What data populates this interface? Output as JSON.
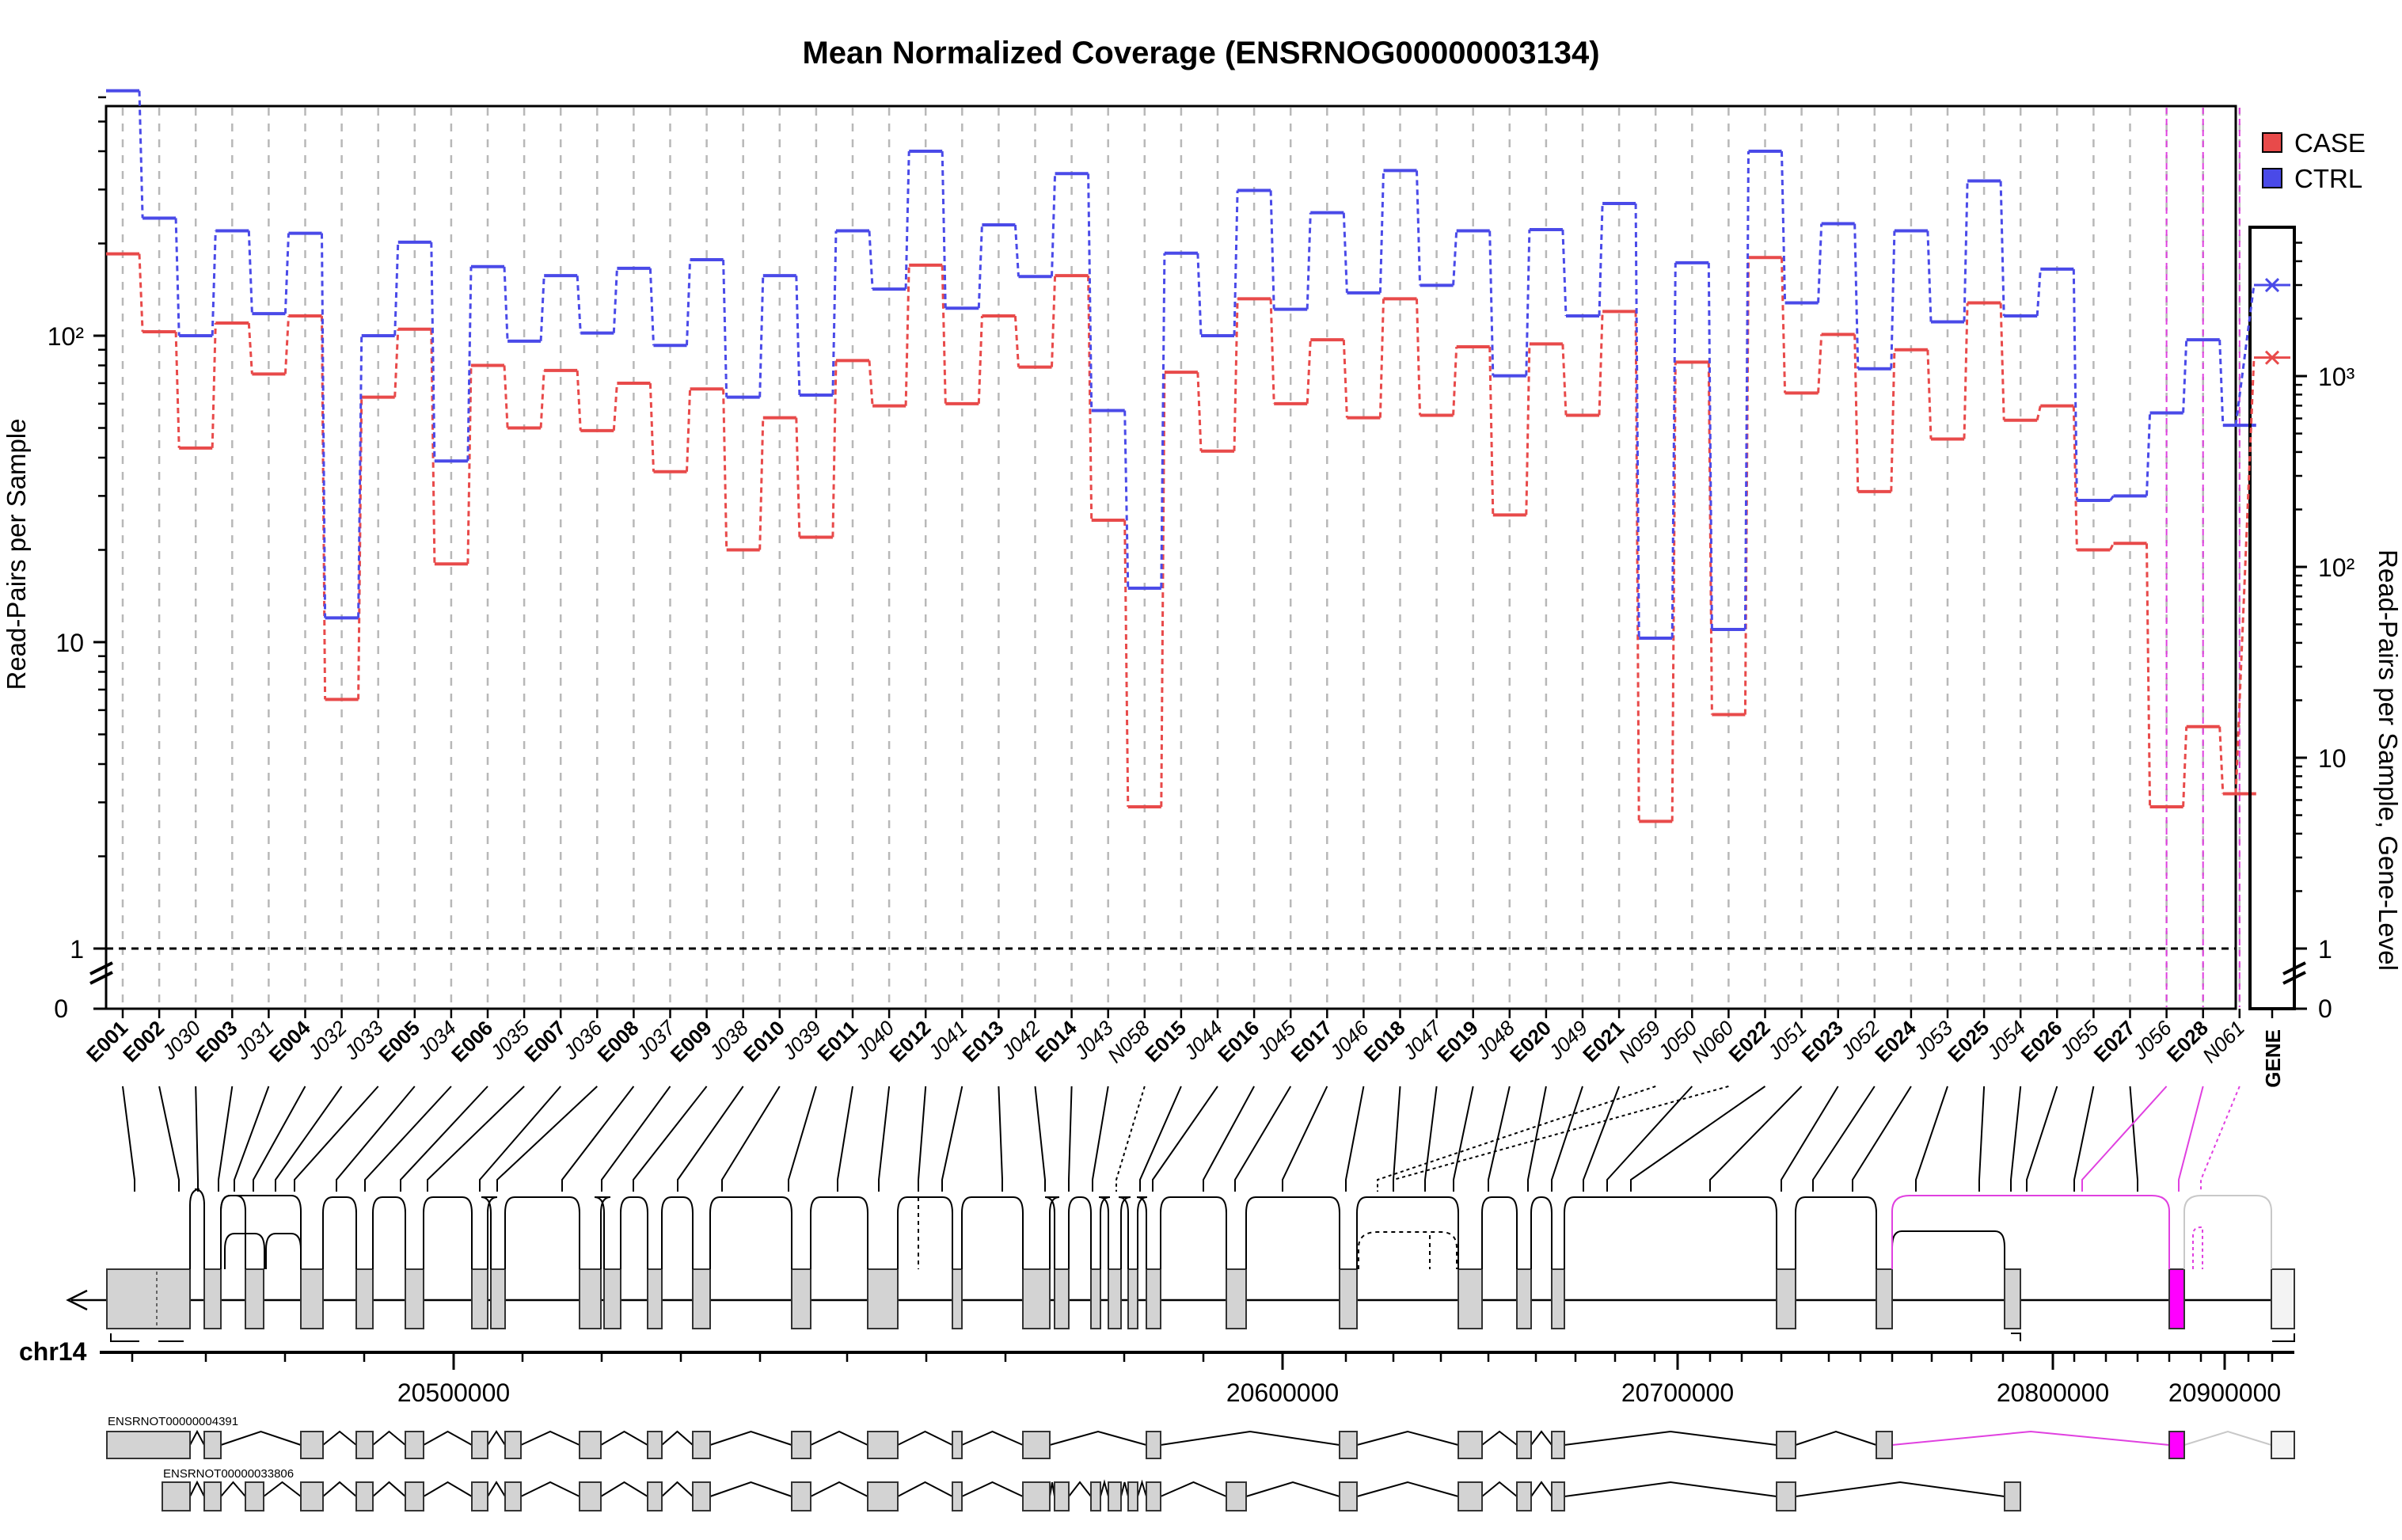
{
  "chart_data": {
    "type": "line",
    "title": "Mean Normalized Coverage (ENSRNOG00000003134)",
    "ylabel": "Read-Pairs per Sample",
    "ylabel_right": "Read-Pairs per Sample, Gene-Level",
    "yscale": "log",
    "ylim": [
      1,
      660
    ],
    "y_ticks": [
      "1",
      "10",
      "10²"
    ],
    "y_break_tick": "0",
    "gene_ylim": [
      1,
      5000
    ],
    "gene_y_ticks": [
      "1",
      "10",
      "10²",
      "10³"
    ],
    "reference_line": 1,
    "grid": "vertical dashed",
    "legend_position": "top-right",
    "categories": [
      "E001",
      "E002",
      "J030",
      "E003",
      "J031",
      "E004",
      "J032",
      "J033",
      "E005",
      "J034",
      "E006",
      "J035",
      "E007",
      "J036",
      "E008",
      "J037",
      "E009",
      "J038",
      "E010",
      "J039",
      "E011",
      "J040",
      "E012",
      "J041",
      "E013",
      "J042",
      "E014",
      "J043",
      "N058",
      "E015",
      "J044",
      "E016",
      "J045",
      "E017",
      "J046",
      "E018",
      "J047",
      "E019",
      "J048",
      "E020",
      "J049",
      "E021",
      "N059",
      "J050",
      "N060",
      "E022",
      "J051",
      "E023",
      "J052",
      "E024",
      "J053",
      "E025",
      "J054",
      "E026",
      "J055",
      "E027",
      "J056",
      "E028",
      "N061"
    ],
    "bold_categories": [
      "E001",
      "E002",
      "E003",
      "E004",
      "E005",
      "E006",
      "E007",
      "E008",
      "E009",
      "E010",
      "E011",
      "E012",
      "E013",
      "E014",
      "E015",
      "E016",
      "E017",
      "E018",
      "E019",
      "E020",
      "E021",
      "E022",
      "E023",
      "E024",
      "E025",
      "E026",
      "E027",
      "E028"
    ],
    "highlight_categories": [
      "J056",
      "E028",
      "N061"
    ],
    "series": [
      {
        "name": "CASE",
        "color": "#e84a4a",
        "values": [
          185,
          103,
          43,
          110,
          75,
          116,
          6.5,
          63,
          105,
          18,
          80,
          50,
          77,
          49,
          70,
          36,
          67,
          20,
          54,
          22,
          83,
          59,
          170,
          60,
          116,
          79,
          157,
          25,
          2.9,
          76,
          42,
          132,
          60,
          97,
          54,
          132,
          55,
          92,
          26,
          94,
          55,
          120,
          2.6,
          82,
          5.8,
          180,
          65,
          101,
          31,
          90,
          46,
          128,
          53,
          59,
          20,
          21,
          2.9,
          5.3,
          3.2
        ]
      },
      {
        "name": "CTRL",
        "color": "#4a4ae8",
        "values": [
          630,
          242,
          100,
          220,
          118,
          216,
          12,
          100,
          202,
          39,
          168,
          96,
          157,
          102,
          166,
          93,
          177,
          63,
          157,
          64,
          220,
          142,
          400,
          123,
          230,
          156,
          338,
          57,
          15,
          186,
          100,
          298,
          122,
          252,
          138,
          346,
          146,
          220,
          74,
          222,
          116,
          270,
          10.3,
          173,
          11,
          400,
          128,
          232,
          78,
          220,
          111,
          320,
          116,
          165,
          29,
          30,
          56,
          97,
          51
        ]
      }
    ],
    "gene_level": {
      "label": "GENE",
      "CASE": 1250,
      "CTRL": 3000
    },
    "chromosome": "chr14",
    "genomic_ticks": [
      "20500000",
      "20600000",
      "20700000",
      "20800000",
      "20900000"
    ],
    "transcripts": [
      "ENSRNOT00000004391",
      "ENSRNOT00000033806"
    ]
  }
}
